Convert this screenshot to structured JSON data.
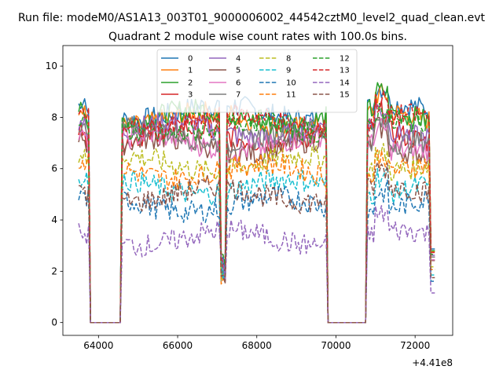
{
  "chart_data": {
    "type": "line",
    "suptitle": "Run file: modeM0/AS1A13_003T01_9000006002_44542cztM0_level2_quad_clean.evt",
    "title": "Quadrant 2 module wise count rates with 100.0s bins.",
    "xlabel": "",
    "ylabel": "",
    "x_offset_label": "+4.41e8",
    "xlim": [
      63100,
      72950
    ],
    "ylim": [
      -0.5,
      10.8
    ],
    "x_ticks": [
      "64000",
      "66000",
      "68000",
      "70000",
      "72000"
    ],
    "y_ticks": [
      "0",
      "2",
      "4",
      "6",
      "8",
      "10"
    ],
    "legend": {
      "placement": "upper center",
      "columns": 4
    },
    "gaps": [
      [
        63800,
        64550
      ],
      [
        69800,
        70750
      ]
    ],
    "x_range": [
      63500,
      72500
    ],
    "series": [
      {
        "name": "0",
        "color": "#1f77b4",
        "style": "solid",
        "level": 8.2
      },
      {
        "name": "1",
        "color": "#ff7f0e",
        "style": "solid",
        "level": 7.9
      },
      {
        "name": "2",
        "color": "#2ca02c",
        "style": "solid",
        "level": 8.0
      },
      {
        "name": "3",
        "color": "#d62728",
        "style": "solid",
        "level": 7.3
      },
      {
        "name": "4",
        "color": "#9467bd",
        "style": "solid",
        "level": 7.5
      },
      {
        "name": "5",
        "color": "#8c564b",
        "style": "solid",
        "level": 6.9
      },
      {
        "name": "6",
        "color": "#e377c2",
        "style": "solid",
        "level": 7.0
      },
      {
        "name": "7",
        "color": "#7f7f7f",
        "style": "solid",
        "level": 7.3
      },
      {
        "name": "8",
        "color": "#bcbd22",
        "style": "dashed",
        "level": 6.2
      },
      {
        "name": "9",
        "color": "#17becf",
        "style": "dashed",
        "level": 5.3
      },
      {
        "name": "10",
        "color": "#1f77b4",
        "style": "dashed",
        "level": 4.6
      },
      {
        "name": "11",
        "color": "#ff7f0e",
        "style": "dashed",
        "level": 5.9
      },
      {
        "name": "12",
        "color": "#2ca02c",
        "style": "dashed",
        "level": 7.6
      },
      {
        "name": "13",
        "color": "#d62728",
        "style": "dashed",
        "level": 7.8
      },
      {
        "name": "14",
        "color": "#9467bd",
        "style": "dashed",
        "level": 3.3
      },
      {
        "name": "15",
        "color": "#8c564b",
        "style": "dashed",
        "level": 5.0
      }
    ]
  }
}
